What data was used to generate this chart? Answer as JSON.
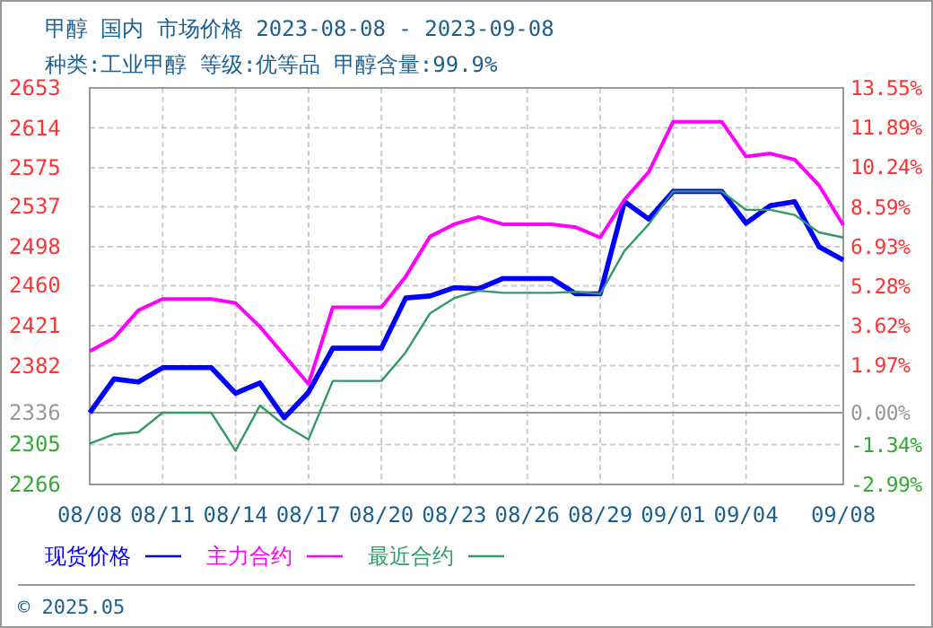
{
  "chart_data": {
    "type": "line",
    "title": "甲醇 国内 市场价格 2023-08-08 - 2023-09-08",
    "subtitle": "种类:工业甲醇 等级:优等品 甲醇含量:99.9%",
    "x": [
      "--08-08",
      "--08-09",
      "--08-10",
      "--08-11",
      "--08-12",
      "--08-13",
      "--08-14",
      "--08-15",
      "--08-16",
      "--08-17",
      "--08-18",
      "--08-19",
      "--08-20",
      "--08-21",
      "--08-22",
      "--08-23",
      "--08-24",
      "--08-25",
      "--08-26",
      "--08-27",
      "--08-28",
      "--08-29",
      "--08-30",
      "--08-31",
      "--09-01",
      "--09-02",
      "--09-03",
      "--09-04",
      "--09-05",
      "--09-06",
      "--09-07",
      "--09-08"
    ],
    "series": [
      {
        "name": "现货价格",
        "color": "#0000ff",
        "values": [
          2336,
          2369,
          2366,
          2380,
          2380,
          2380,
          2355,
          2365,
          2331,
          2356,
          2399,
          2399,
          2399,
          2448,
          2450,
          2458,
          2457,
          2467,
          2467,
          2467,
          2452,
          2452,
          2542,
          2525,
          2552,
          2552,
          2552,
          2521,
          2538,
          2542,
          2498,
          2485
        ]
      },
      {
        "name": "主力合约",
        "color": "#ff00ff",
        "values": [
          2396,
          2409,
          2436,
          2447,
          2447,
          2447,
          2443,
          2420,
          2392,
          2364,
          2439,
          2439,
          2439,
          2469,
          2508,
          2520,
          2527,
          2520,
          2520,
          2520,
          2517,
          2507,
          2544,
          2571,
          2620,
          2620,
          2620,
          2586,
          2589,
          2583,
          2558,
          2519
        ]
      },
      {
        "name": "最近合约",
        "color": "#339966",
        "values": [
          2306,
          2315,
          2317,
          2336,
          2336,
          2336,
          2299,
          2343,
          2324,
          2310,
          2367,
          2367,
          2367,
          2395,
          2433,
          2448,
          2455,
          2453,
          2453,
          2453,
          2454,
          2452,
          2494,
          2520,
          2552,
          2552,
          2552,
          2534,
          2534,
          2529,
          2512,
          2507
        ]
      }
    ],
    "xlim": [
      "--08-08",
      "--09-08"
    ],
    "xticks": [
      {
        "value": "--08-08",
        "label": "08/08"
      },
      {
        "value": "--08-11",
        "label": "08/11"
      },
      {
        "value": "--08-14",
        "label": "08/14"
      },
      {
        "value": "--08-17",
        "label": "08/17"
      },
      {
        "value": "--08-20",
        "label": "08/20"
      },
      {
        "value": "--08-23",
        "label": "08/23"
      },
      {
        "value": "--08-26",
        "label": "08/26"
      },
      {
        "value": "--08-29",
        "label": "08/29"
      },
      {
        "value": "--09-01",
        "label": "09/01"
      },
      {
        "value": "--09-04",
        "label": "09/04"
      },
      {
        "value": "--09-08",
        "label": "09/08"
      }
    ],
    "ylim": [
      2266,
      2653
    ],
    "yticks": [
      2266,
      2305,
      2336,
      {
        "value": 2343,
        "label": null
      },
      2382,
      2421,
      2460,
      2498,
      2537,
      2575,
      2614,
      2653
    ],
    "y2lim": [
      -2.99,
      13.55
    ],
    "y2ticks": [
      {
        "value": -2.99,
        "label": "-2.99%"
      },
      {
        "value": -1.34,
        "label": "-1.34%"
      },
      {
        "value": 0,
        "label": "0.00%"
      },
      {
        "value": 1.97,
        "label": "1.97%"
      },
      {
        "value": 3.62,
        "label": "3.62%"
      },
      {
        "value": 5.28,
        "label": "5.28%"
      },
      {
        "value": 6.93,
        "label": "6.93%"
      },
      {
        "value": 8.59,
        "label": "8.59%"
      },
      {
        "value": 10.24,
        "label": "10.24%"
      },
      {
        "value": 11.89,
        "label": "11.89%"
      },
      {
        "value": 13.55,
        "label": "13.55%"
      }
    ],
    "ref_lines": [
      {
        "axis": "y",
        "value": 2336,
        "color": "#999999"
      }
    ],
    "annotations": [
      "© 2025.05"
    ],
    "grid": true,
    "legend": "bottom",
    "marker": "none",
    "line_style": "solid"
  }
}
